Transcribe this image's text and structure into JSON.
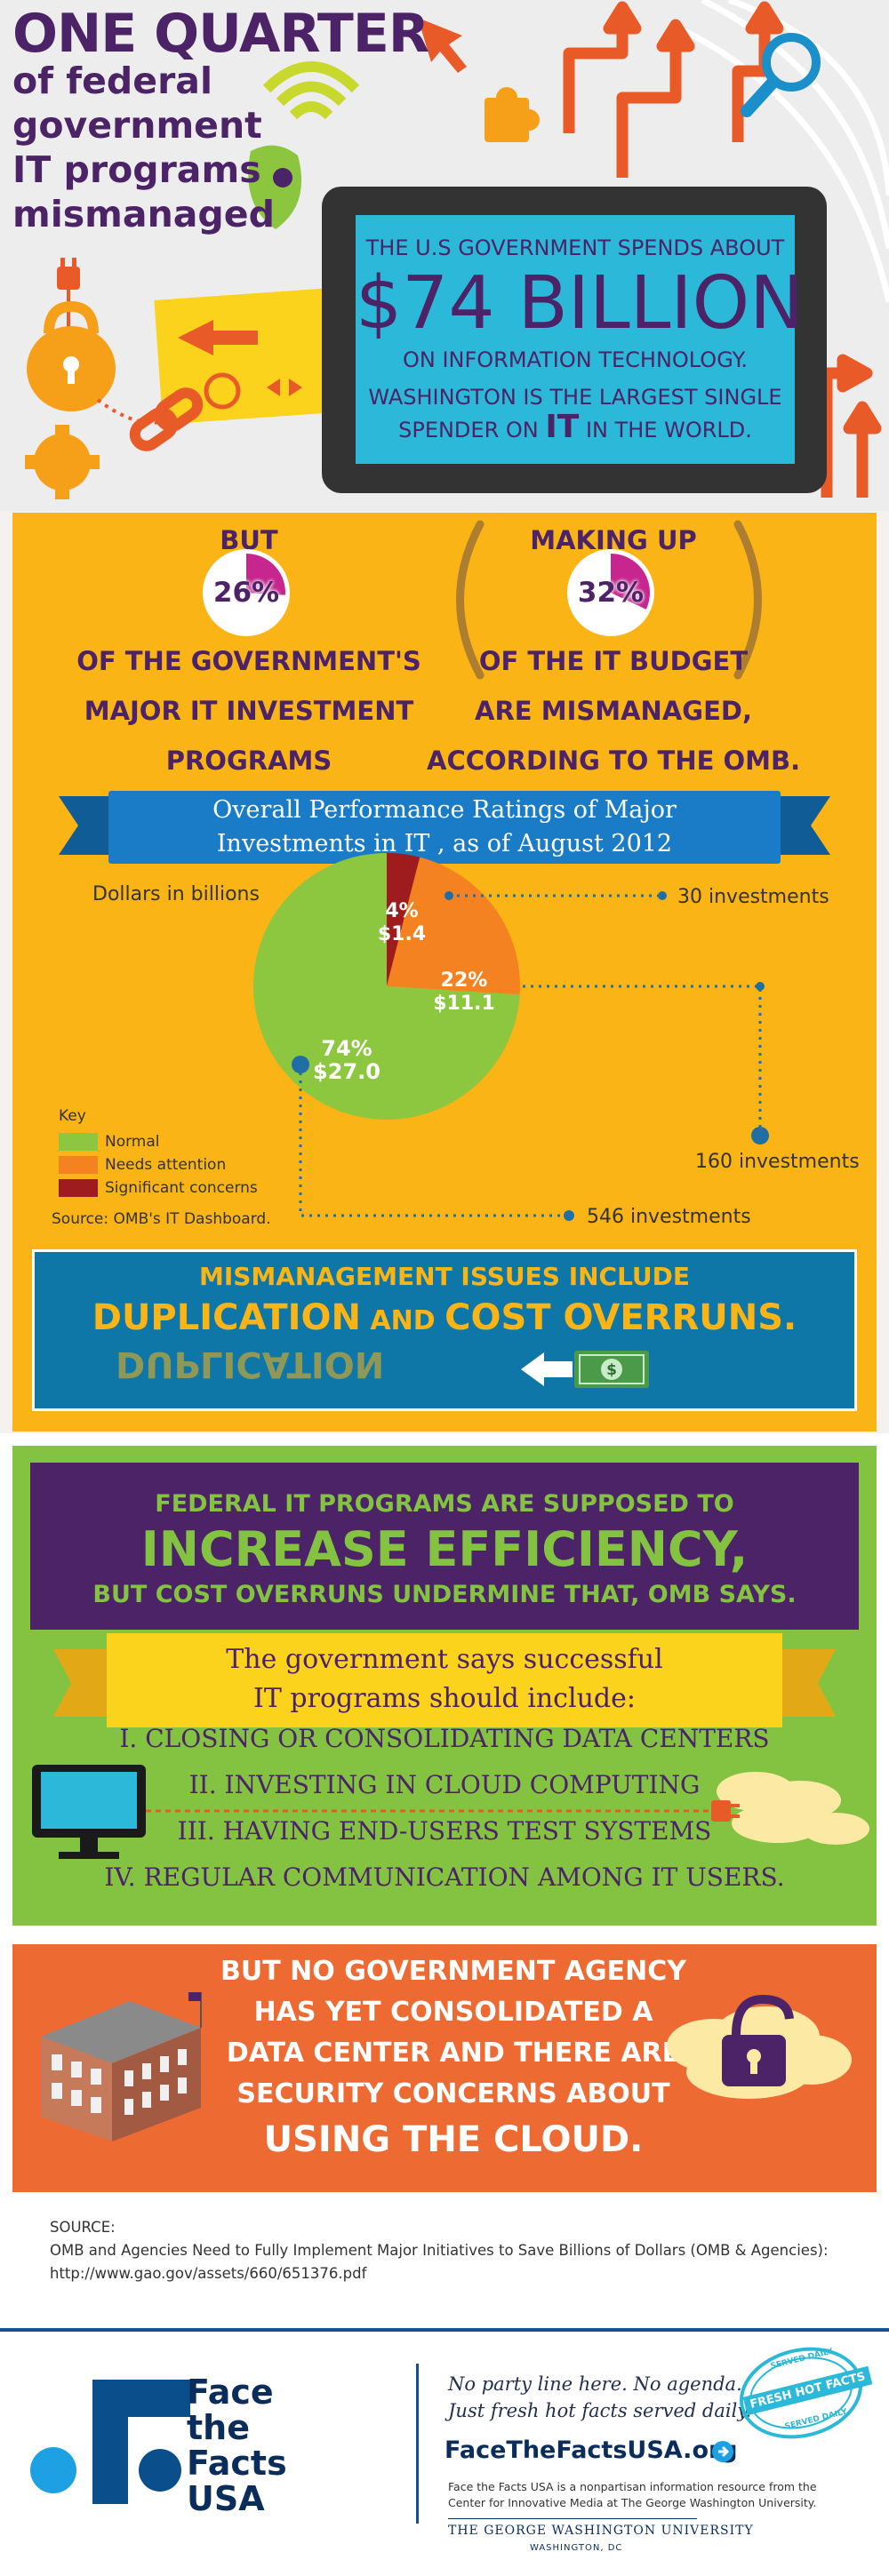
{
  "hero": {
    "title": "ONE QUARTER",
    "subtitle_lines": [
      "of federal",
      "government",
      "IT programs",
      "mismanaged"
    ],
    "tablet": {
      "line1": "THE U.S GOVERNMENT SPENDS ABOUT",
      "amount": "$74 BILLION",
      "line2": "ON INFORMATION TECHNOLOGY.",
      "line3": "WASHINGTON IS THE LARGEST SINGLE",
      "line4_pre": "SPENDER ON ",
      "line4_it": "IT",
      "line4_post": " IN THE WORLD."
    },
    "icons": [
      "ipod-icon",
      "wifi-icon",
      "plug-icon",
      "lock-icon",
      "video-player-icon",
      "chain-link-icon",
      "gear-icon",
      "puzzle-piece-icon",
      "cursor-arrow-icon",
      "magnifier-icon",
      "arrows-icon",
      "circuit-icon"
    ]
  },
  "stats": {
    "left": {
      "label_top": "BUT",
      "percent": "26%",
      "value": 26,
      "lines": [
        "OF THE GOVERNMENT'S",
        "MAJOR IT INVESTMENT",
        "PROGRAMS"
      ]
    },
    "right": {
      "label_top": "MAKING UP",
      "percent": "32%",
      "value": 32,
      "lines": [
        "OF THE IT BUDGET",
        "ARE MISMANAGED,",
        "ACCORDING TO THE OMB."
      ]
    },
    "colors": {
      "fill": "#c7268e",
      "base": "#ffffff"
    }
  },
  "chart_banner": {
    "line1": "Overall Performance Ratings of Major",
    "line2": "Investments in IT , as of August 2012"
  },
  "chart_data": {
    "type": "pie",
    "title": "Overall Performance Ratings of Major Investments in IT , as of August 2012",
    "unit_label": "Dollars in billions",
    "slices": [
      {
        "name": "Normal",
        "percent": "74%",
        "share": 74,
        "amount": "$27.0",
        "value": 27.0,
        "investments": "546 investments",
        "color": "#8dc63f"
      },
      {
        "name": "Needs attention",
        "percent": "22%",
        "share": 22,
        "amount": "$11.1",
        "value": 11.1,
        "investments": "160 investments",
        "color": "#f58220"
      },
      {
        "name": "Significant concerns",
        "percent": "4%",
        "share": 4,
        "amount": "$1.4",
        "value": 1.4,
        "investments": "30 investments",
        "color": "#9e1b1e"
      }
    ],
    "legend_title": "Key",
    "legend_position": "bottom-left",
    "source": "Source: OMB's IT Dashboard."
  },
  "mismanagement": {
    "line1": "MISMANAGEMENT ISSUES INCLUDE",
    "word1": "DUPLICATION",
    "and": " AND ",
    "word2": "COST OVERRUNS.",
    "reflection": "DUPLICATION"
  },
  "efficiency": {
    "line1": "FEDERAL IT PROGRAMS ARE SUPPOSED TO",
    "big": "INCREASE EFFICIENCY,",
    "line3": "BUT COST OVERRUNS UNDERMINE THAT, OMB SAYS."
  },
  "successful": {
    "banner1": "The government says successful",
    "banner2": "IT programs should include:",
    "items": [
      "I. CLOSING OR CONSOLIDATING DATA CENTERS",
      "II. INVESTING IN CLOUD COMPUTING",
      "III. HAVING END-USERS TEST SYSTEMS",
      "IV. REGULAR COMMUNICATION AMONG IT USERS."
    ]
  },
  "agency": {
    "lines": [
      "BUT NO GOVERNMENT AGENCY",
      "HAS YET CONSOLIDATED A",
      "DATA CENTER AND THERE ARE",
      "SECURITY CONCERNS ABOUT"
    ],
    "big": "USING THE CLOUD."
  },
  "source": {
    "label": "SOURCE:",
    "line1": "OMB and Agencies Need to Fully Implement Major Initiatives to Save Billions of Dollars (OMB & Agencies):",
    "url": "http://www.gao.gov/assets/660/651376.pdf"
  },
  "footer": {
    "brand_lines": [
      "Face",
      "the",
      "Facts",
      "USA"
    ],
    "tagline1": "No party line here. No agenda.",
    "tagline2": "Just fresh hot facts served daily.",
    "site": "FaceTheFactsUSA.org",
    "disclaimer1": "Face the Facts USA is a nonpartisan information resource from the",
    "disclaimer2": "Center for Innovative Media at The George Washington University.",
    "gwu": "THE GEORGE WASHINGTON UNIVERSITY",
    "gwu_sub": "WASHINGTON, DC",
    "stamp_top": "SERVED DAILY",
    "stamp_main": "FRESH HOT FACTS",
    "stamp_bottom": "SERVED DAILY"
  },
  "colors": {
    "purple": "#4b2366",
    "yellow": "#fbb416",
    "green": "#84c341",
    "orange": "#ed6a33",
    "blue": "#1a7cc6",
    "cyan": "#2bb8d9",
    "navy": "#0a2d5c"
  }
}
